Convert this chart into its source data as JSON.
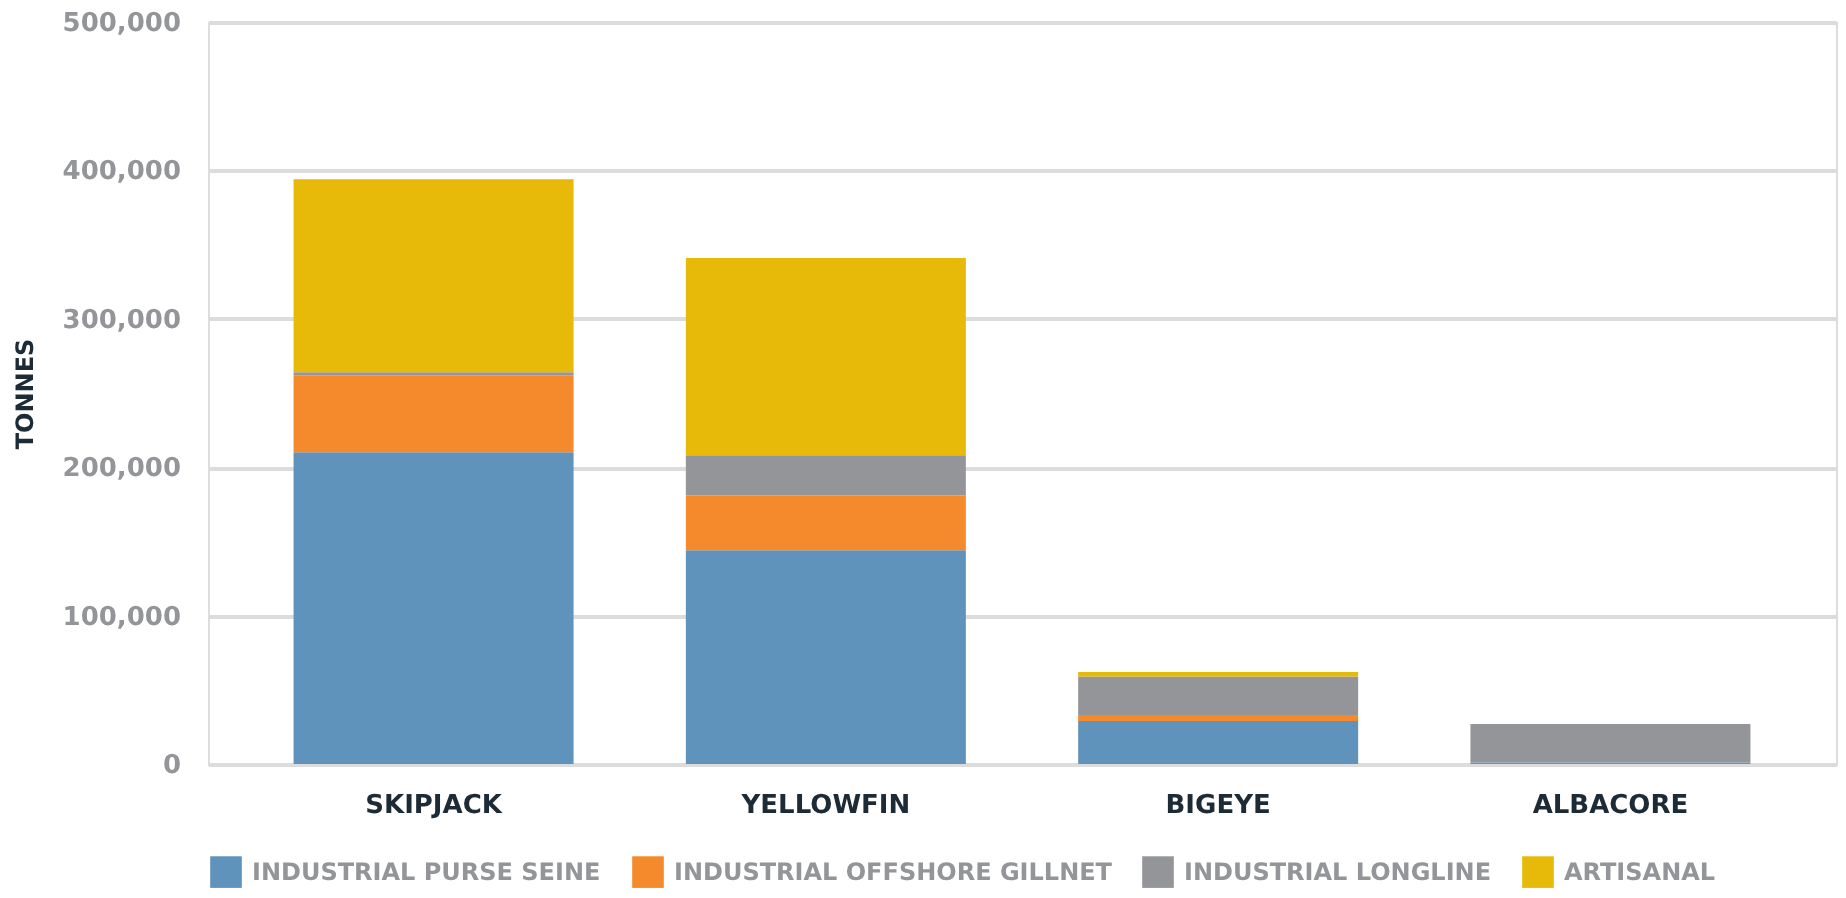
{
  "chart_data": {
    "type": "bar",
    "stacked": true,
    "ylabel": "TONNES",
    "categories": [
      "SKIPJACK",
      "YELLOWFIN",
      "BIGEYE",
      "ALBACORE"
    ],
    "series": [
      {
        "name": "INDUSTRIAL PURSE SEINE",
        "color": "#5f93bc",
        "values": [
          210000,
          144000,
          29000,
          1000
        ]
      },
      {
        "name": "INDUSTRIAL OFFSHORE GILLNET",
        "color": "#f48a2c",
        "values": [
          52000,
          37000,
          4000,
          0
        ]
      },
      {
        "name": "INDUSTRIAL LONGLINE",
        "color": "#939598",
        "values": [
          2000,
          27000,
          26000,
          26000
        ]
      },
      {
        "name": "ARTISANAL",
        "color": "#e7b909",
        "values": [
          130000,
          133000,
          3000,
          0
        ]
      }
    ],
    "ylim": [
      0,
      500000
    ],
    "yticks": [
      0,
      {
        "value": 100000,
        "label": "100,000"
      },
      {
        "value": 200000,
        "label": "200,000"
      },
      {
        "value": 300000,
        "label": "300,000"
      },
      {
        "value": 400000,
        "label": "400,000"
      },
      {
        "value": 500000,
        "label": "500,000"
      }
    ],
    "grid": "y",
    "legend": "bottom"
  }
}
